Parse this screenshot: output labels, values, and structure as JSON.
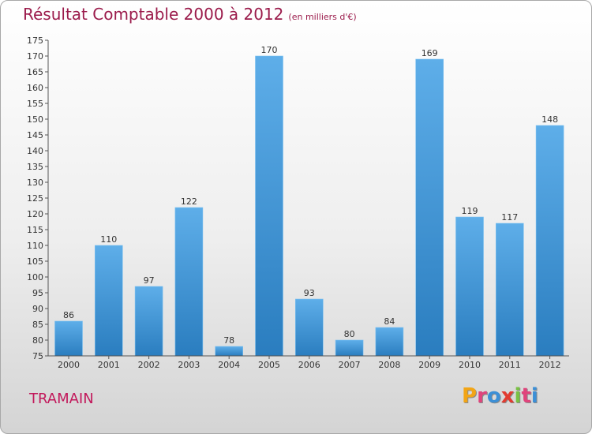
{
  "chart_data": {
    "type": "bar",
    "title": "Résultat Comptable 2000 à 2012",
    "subtitle": "(en milliers d'€)",
    "categories": [
      "2000",
      "2001",
      "2002",
      "2003",
      "2004",
      "2005",
      "2006",
      "2007",
      "2008",
      "2009",
      "2010",
      "2011",
      "2012"
    ],
    "values": [
      86,
      110,
      97,
      122,
      78,
      170,
      93,
      80,
      84,
      169,
      119,
      117,
      148
    ],
    "ylim": [
      75,
      175
    ],
    "ytick_step": 5,
    "xlabel": "",
    "ylabel": "",
    "grid": false,
    "legend": "none"
  },
  "footer": {
    "commune": "TRAMAIN",
    "brand_letters": [
      "P",
      "r",
      "o",
      "x",
      "i",
      "t",
      "i"
    ]
  },
  "colors": {
    "title": "#9b1b4b",
    "commune": "#c2185b",
    "bar_top": "#5eaee9",
    "bar_bottom": "#2a7dbf",
    "brand": [
      "#f2a516",
      "#e0447c",
      "#3c8fd6",
      "#e23b30",
      "#79c143",
      "#e0447c",
      "#3c8fd6"
    ]
  }
}
